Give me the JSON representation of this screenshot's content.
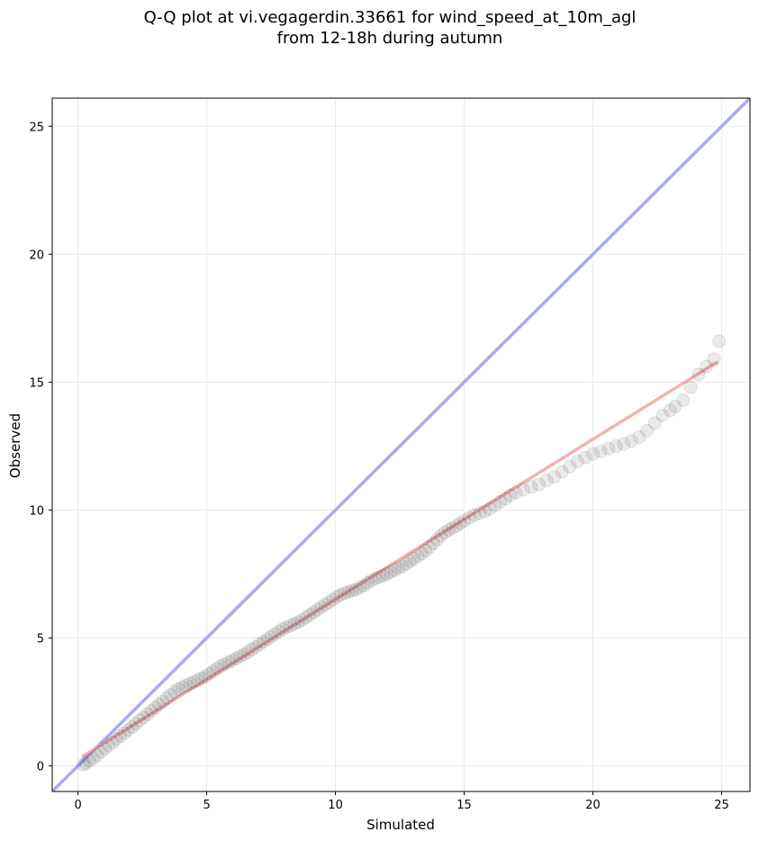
{
  "chart_data": {
    "type": "scatter",
    "title_line1": "Q-Q plot at vi.vegagerdin.33661 for wind_speed_at_10m_agl",
    "title_line2": "from 12-18h during autumn",
    "xlabel": "Simulated",
    "ylabel": "Observed",
    "xlim": [
      -1.0,
      26.1
    ],
    "ylim": [
      -1.0,
      26.1
    ],
    "xticks": [
      0,
      5,
      10,
      15,
      20,
      25
    ],
    "yticks": [
      0,
      5,
      10,
      15,
      20,
      25
    ],
    "grid": true,
    "identity_line_color": "#aaaaf2",
    "fit_line_color": "#f2a3a3",
    "point_color": "#000000",
    "fit_line": {
      "x": [
        0.15,
        24.85
      ],
      "y": [
        0.35,
        15.8
      ]
    },
    "series": [
      {
        "values": [
          [
            0.2,
            0.05
          ],
          [
            0.3,
            0.1
          ],
          [
            0.45,
            0.2
          ],
          [
            0.6,
            0.3
          ],
          [
            0.75,
            0.42
          ],
          [
            0.9,
            0.55
          ],
          [
            1.05,
            0.68
          ],
          [
            1.2,
            0.8
          ],
          [
            1.35,
            0.92
          ],
          [
            1.5,
            1.05
          ],
          [
            1.65,
            1.17
          ],
          [
            1.8,
            1.28
          ],
          [
            1.95,
            1.4
          ],
          [
            2.1,
            1.52
          ],
          [
            2.25,
            1.65
          ],
          [
            2.4,
            1.78
          ],
          [
            2.55,
            1.9
          ],
          [
            2.7,
            2.02
          ],
          [
            2.85,
            2.15
          ],
          [
            3.0,
            2.28
          ],
          [
            3.15,
            2.4
          ],
          [
            3.3,
            2.52
          ],
          [
            3.45,
            2.65
          ],
          [
            3.6,
            2.78
          ],
          [
            3.75,
            2.9
          ],
          [
            3.9,
            3.0
          ],
          [
            4.05,
            3.08
          ],
          [
            4.2,
            3.15
          ],
          [
            4.35,
            3.22
          ],
          [
            4.5,
            3.28
          ],
          [
            4.65,
            3.35
          ],
          [
            4.8,
            3.42
          ],
          [
            4.95,
            3.5
          ],
          [
            5.1,
            3.6
          ],
          [
            5.25,
            3.7
          ],
          [
            5.4,
            3.8
          ],
          [
            5.55,
            3.9
          ],
          [
            5.7,
            3.98
          ],
          [
            5.85,
            4.05
          ],
          [
            6.0,
            4.12
          ],
          [
            6.15,
            4.2
          ],
          [
            6.3,
            4.28
          ],
          [
            6.45,
            4.36
          ],
          [
            6.6,
            4.45
          ],
          [
            6.75,
            4.55
          ],
          [
            6.9,
            4.65
          ],
          [
            7.05,
            4.75
          ],
          [
            7.2,
            4.85
          ],
          [
            7.35,
            4.95
          ],
          [
            7.5,
            5.05
          ],
          [
            7.65,
            5.15
          ],
          [
            7.8,
            5.25
          ],
          [
            7.95,
            5.35
          ],
          [
            8.1,
            5.42
          ],
          [
            8.25,
            5.48
          ],
          [
            8.4,
            5.55
          ],
          [
            8.55,
            5.62
          ],
          [
            8.7,
            5.7
          ],
          [
            8.85,
            5.8
          ],
          [
            9.0,
            5.9
          ],
          [
            9.15,
            6.0
          ],
          [
            9.3,
            6.1
          ],
          [
            9.45,
            6.2
          ],
          [
            9.6,
            6.3
          ],
          [
            9.75,
            6.4
          ],
          [
            9.9,
            6.5
          ],
          [
            10.05,
            6.6
          ],
          [
            10.2,
            6.68
          ],
          [
            10.35,
            6.75
          ],
          [
            10.5,
            6.8
          ],
          [
            10.65,
            6.85
          ],
          [
            10.8,
            6.9
          ],
          [
            10.95,
            6.98
          ],
          [
            11.1,
            7.05
          ],
          [
            11.25,
            7.15
          ],
          [
            11.4,
            7.25
          ],
          [
            11.55,
            7.32
          ],
          [
            11.7,
            7.38
          ],
          [
            11.85,
            7.44
          ],
          [
            12.0,
            7.5
          ],
          [
            12.15,
            7.58
          ],
          [
            12.3,
            7.65
          ],
          [
            12.45,
            7.72
          ],
          [
            12.6,
            7.8
          ],
          [
            12.75,
            7.9
          ],
          [
            12.9,
            8.0
          ],
          [
            13.05,
            8.1
          ],
          [
            13.2,
            8.2
          ],
          [
            13.35,
            8.3
          ],
          [
            13.5,
            8.42
          ],
          [
            13.65,
            8.55
          ],
          [
            13.8,
            8.7
          ],
          [
            13.95,
            8.85
          ],
          [
            14.1,
            9.0
          ],
          [
            14.25,
            9.12
          ],
          [
            14.4,
            9.22
          ],
          [
            14.55,
            9.3
          ],
          [
            14.7,
            9.38
          ],
          [
            14.85,
            9.48
          ],
          [
            15.0,
            9.58
          ],
          [
            15.2,
            9.7
          ],
          [
            15.4,
            9.8
          ],
          [
            15.6,
            9.88
          ],
          [
            15.8,
            9.95
          ],
          [
            16.0,
            10.05
          ],
          [
            16.2,
            10.18
          ],
          [
            16.4,
            10.32
          ],
          [
            16.6,
            10.45
          ],
          [
            16.8,
            10.58
          ],
          [
            17.0,
            10.68
          ],
          [
            17.3,
            10.8
          ],
          [
            17.6,
            10.9
          ],
          [
            17.9,
            11.0
          ],
          [
            18.2,
            11.15
          ],
          [
            18.5,
            11.3
          ],
          [
            18.8,
            11.5
          ],
          [
            19.1,
            11.7
          ],
          [
            19.4,
            11.9
          ],
          [
            19.7,
            12.05
          ],
          [
            20.0,
            12.2
          ],
          [
            20.3,
            12.3
          ],
          [
            20.6,
            12.4
          ],
          [
            20.9,
            12.5
          ],
          [
            21.2,
            12.58
          ],
          [
            21.5,
            12.7
          ],
          [
            21.8,
            12.85
          ],
          [
            22.1,
            13.1
          ],
          [
            22.4,
            13.4
          ],
          [
            22.7,
            13.7
          ],
          [
            23.0,
            13.9
          ],
          [
            23.2,
            14.05
          ],
          [
            23.5,
            14.3
          ],
          [
            23.8,
            14.8
          ],
          [
            24.1,
            15.3
          ],
          [
            24.4,
            15.6
          ],
          [
            24.7,
            15.9
          ],
          [
            24.9,
            16.6
          ]
        ]
      }
    ]
  }
}
